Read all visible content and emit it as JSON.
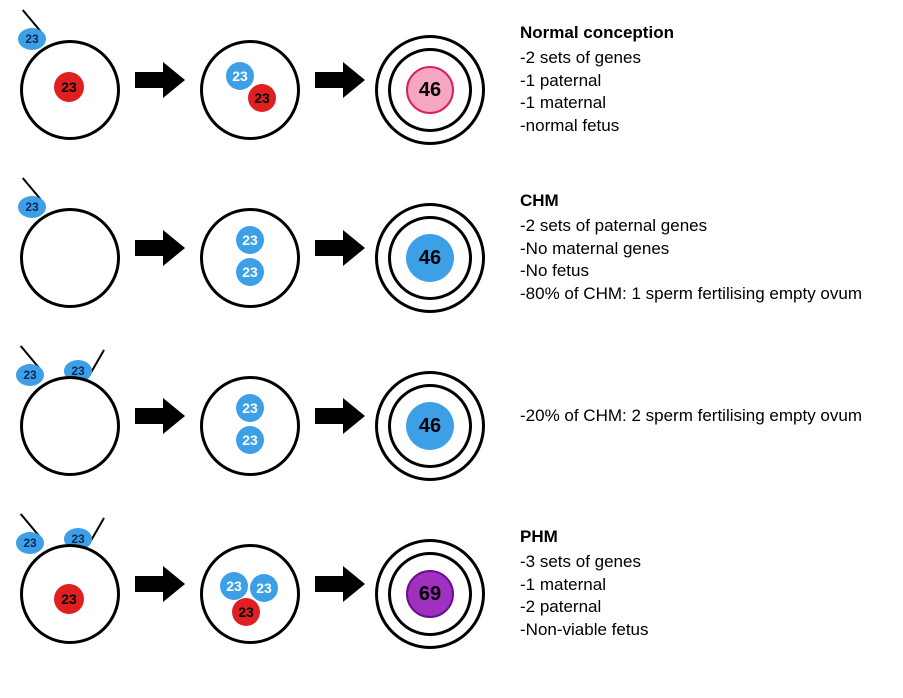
{
  "colors": {
    "sperm_fill": "#3da0e6",
    "egg_nucleus_fill": "#e02020",
    "egg_nucleus_text": "#000000",
    "sperm_text": "#0a2a5a",
    "normal_zygote_fill": "#f5a6c0",
    "normal_zygote_border": "#d91e6a",
    "chm_zygote_fill": "#3da0e6",
    "phm_zygote_fill": "#a030c0",
    "phm_zygote_border": "#6a0f8a",
    "arrow": "#000000",
    "bg": "#ffffff"
  },
  "sizes": {
    "ovum_diameter": 100,
    "small_nucleus": 30,
    "med_nucleus": 28,
    "zygote_nucleus": 48,
    "sperm_w": 28,
    "sperm_h": 22,
    "nucleus_font": 14,
    "zygote_font": 20,
    "sperm_font": 12
  },
  "labels": {
    "sperm": "23",
    "egg_nucleus": "23",
    "normal_zygote": "46",
    "chm_zygote": "46",
    "phm_zygote": "69"
  },
  "rows": [
    {
      "id": "normal",
      "title": "Normal conception",
      "lines": [
        "-2 sets of genes",
        "-1 paternal",
        "-1 maternal",
        "-normal fetus"
      ]
    },
    {
      "id": "chm1",
      "title": "CHM",
      "lines": [
        "-2 sets of paternal genes",
        "-No maternal genes",
        "-No fetus",
        "-80% of CHM: 1 sperm fertilising empty ovum"
      ]
    },
    {
      "id": "chm2",
      "title": "",
      "lines": [
        "-20% of CHM: 2 sperm fertilising empty ovum"
      ]
    },
    {
      "id": "phm",
      "title": "PHM",
      "lines": [
        "-3 sets of genes",
        "-1 maternal",
        "-2 paternal",
        "-Non-viable fetus"
      ]
    }
  ]
}
